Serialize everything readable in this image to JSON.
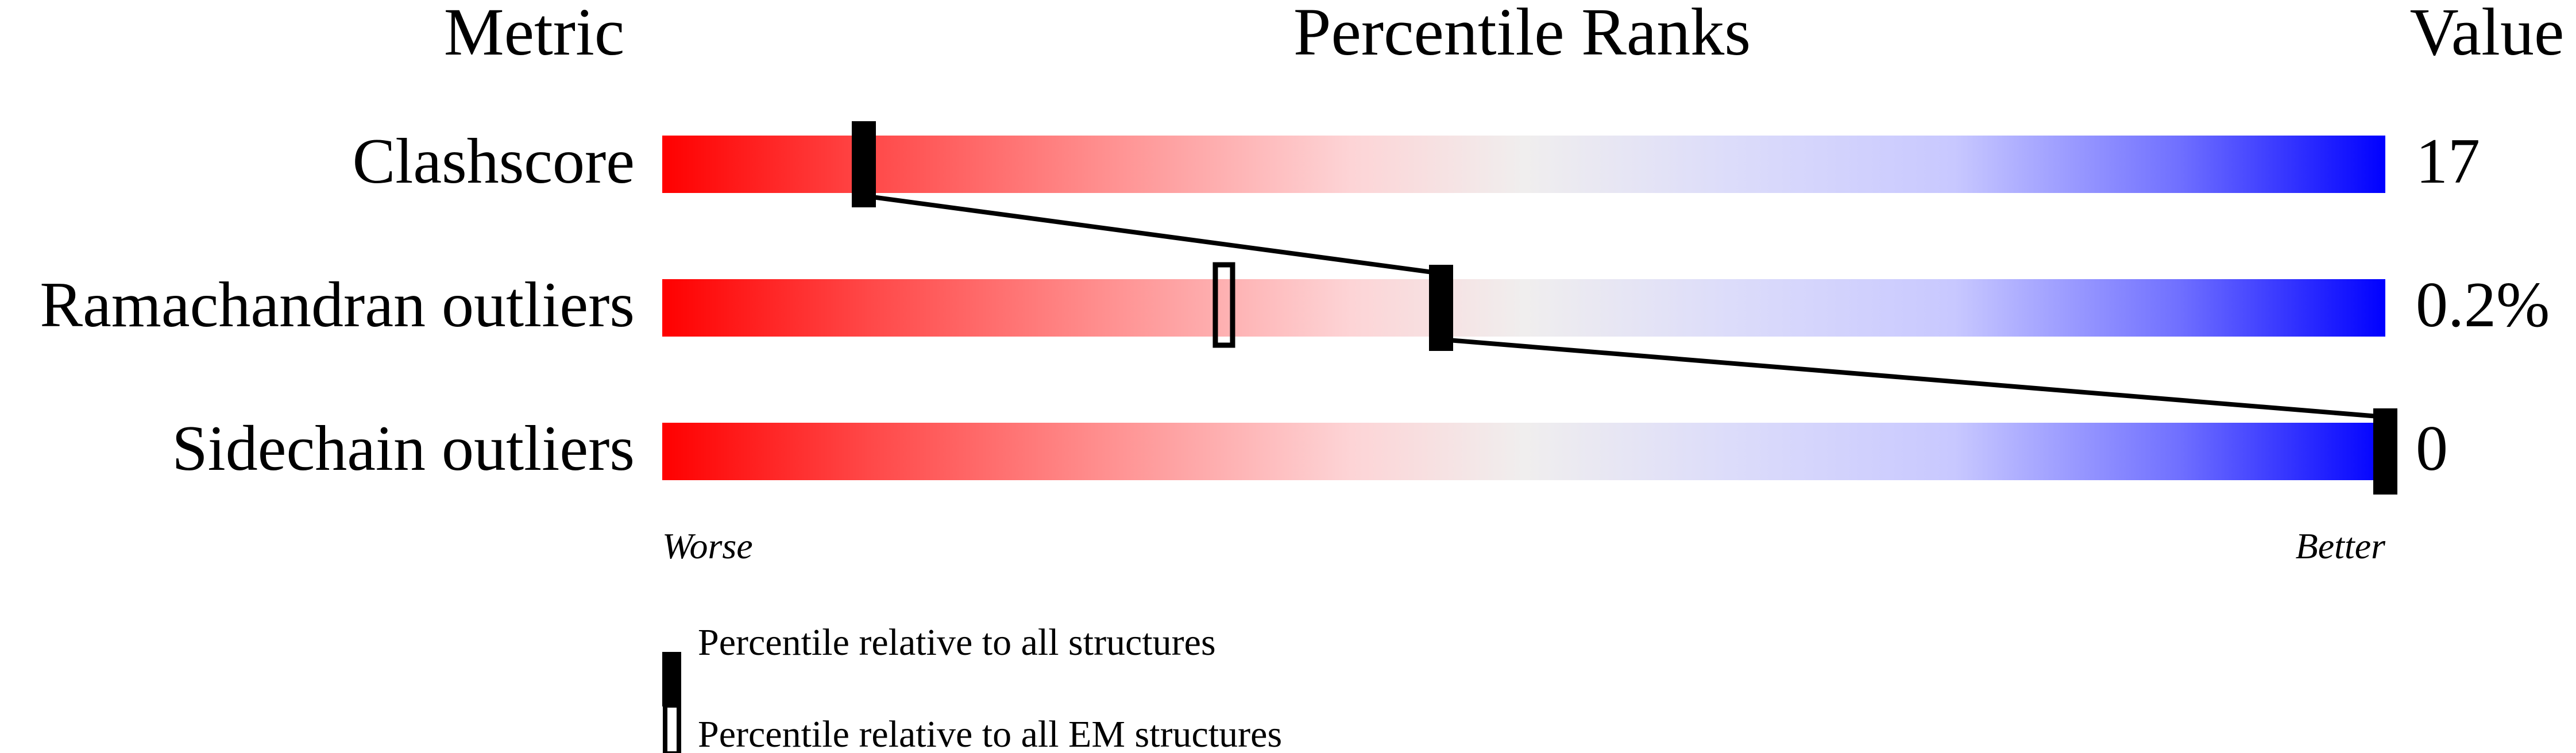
{
  "chart_data": {
    "type": "percentile-slider",
    "headers": {
      "metric": "Metric",
      "ranks": "Percentile Ranks",
      "value": "Value"
    },
    "xlim": [
      0,
      100
    ],
    "axis_labels": {
      "left": "Worse",
      "right": "Better"
    },
    "gradient_colors": [
      "#ff0000",
      "#f0f0f0",
      "#0000ff"
    ],
    "rows": [
      {
        "metric": "Clashscore",
        "value": "17",
        "percentile_all": 11.7,
        "percentile_em": null
      },
      {
        "metric": "Ramachandran outliers",
        "value": "0.2%",
        "percentile_all": 45.2,
        "percentile_em": 32.6
      },
      {
        "metric": "Sidechain outliers",
        "value": "0",
        "percentile_all": 100,
        "percentile_em": null
      }
    ],
    "legend": [
      {
        "marker": "filled",
        "label": "Percentile relative to all structures"
      },
      {
        "marker": "outline",
        "label": "Percentile relative to all EM structures"
      }
    ]
  }
}
